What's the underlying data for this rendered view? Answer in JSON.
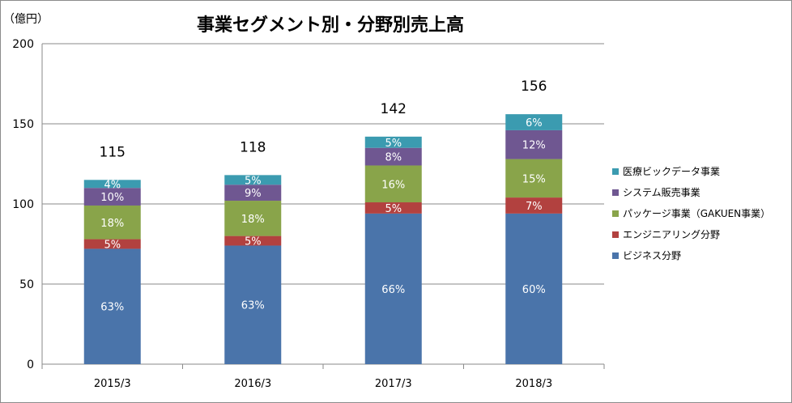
{
  "chart_data": {
    "type": "bar",
    "stacked": true,
    "title": "事業セグメント別・分野別売上高",
    "ylabel": "（億円）",
    "ylim": [
      0,
      200
    ],
    "yticks": [
      0,
      50,
      100,
      150,
      200
    ],
    "grid": true,
    "legend_position": "right",
    "categories": [
      "2015/3",
      "2016/3",
      "2017/3",
      "2018/3"
    ],
    "totals": [
      115,
      118,
      142,
      156
    ],
    "series": [
      {
        "name": "ビジネス分野",
        "color": "#4a74aa",
        "values": [
          72,
          74,
          94,
          94
        ],
        "labels": [
          "63%",
          "63%",
          "66%",
          "60%"
        ]
      },
      {
        "name": "エンジニアリング分野",
        "color": "#b2413f",
        "values": [
          6,
          6,
          7,
          10
        ],
        "labels": [
          "5%",
          "5%",
          "5%",
          "7%"
        ]
      },
      {
        "name": "パッケージ事業（GAKUEN事業）",
        "color": "#89a44a",
        "values": [
          21,
          22,
          23,
          24
        ],
        "labels": [
          "18%",
          "18%",
          "16%",
          "15%"
        ]
      },
      {
        "name": "システム販売事業",
        "color": "#6f5791",
        "values": [
          11,
          10,
          11,
          18
        ],
        "labels": [
          "10%",
          "9%",
          "8%",
          "12%"
        ]
      },
      {
        "name": "医療ビックデータ事業",
        "color": "#3b9bb0",
        "values": [
          5,
          6,
          7,
          10
        ],
        "labels": [
          "4%",
          "5%",
          "5%",
          "6%"
        ]
      }
    ]
  }
}
